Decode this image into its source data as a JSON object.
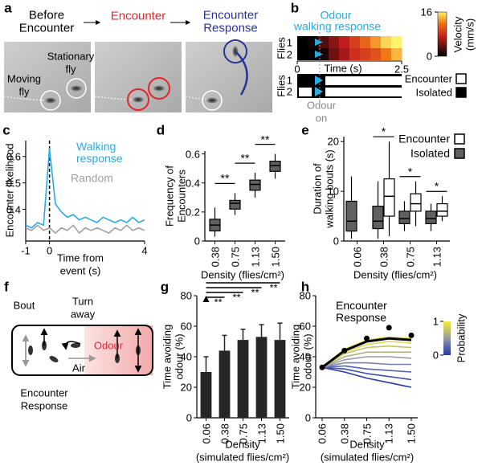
{
  "figure": {
    "panel_labels": [
      "a",
      "b",
      "c",
      "d",
      "e",
      "f",
      "g",
      "h"
    ],
    "panel_a": {
      "steps": [
        [
          "Before",
          "Encounter"
        ],
        [
          "Encounter"
        ],
        [
          "Encounter",
          "Response"
        ]
      ],
      "step_colors": [
        "#000000",
        "#e3262e",
        "#283593"
      ],
      "annotations": [
        [
          "Stationary",
          "fly"
        ],
        [
          "Moving",
          "fly"
        ]
      ]
    },
    "panel_f": {
      "bout": "Bout",
      "turn": [
        "Turn",
        "away"
      ],
      "air": "Air",
      "odour": "Odour",
      "response": [
        "Encounter",
        "Response"
      ]
    }
  },
  "chart_data": [
    {
      "type": "heatmap",
      "title": [
        "Odour",
        "walking response"
      ],
      "title_color": "#29abe2",
      "ylabel": "Flies",
      "rows": [
        "1",
        "2"
      ],
      "xlabel": "Time (s)",
      "xlim": [
        0,
        2.5
      ],
      "xticks": [
        0,
        2.5
      ],
      "values": [
        [
          0,
          0.5,
          3,
          5,
          7,
          9,
          11,
          13,
          15,
          16
        ],
        [
          0,
          0,
          1,
          4,
          6,
          8,
          9,
          10,
          12,
          14
        ]
      ],
      "colorbar": {
        "label": [
          "Velocity",
          "(mm/s)"
        ],
        "lim": [
          0,
          16
        ],
        "ticks": [
          0,
          16
        ]
      },
      "raster": {
        "ylabel": "Flies",
        "rows": [
          "1",
          "2"
        ],
        "legend": [
          {
            "name": "Encounter",
            "color": "#ffffff"
          },
          {
            "name": "Isolated",
            "color": "#000000"
          }
        ],
        "marker": [
          "Odour",
          "on"
        ]
      }
    },
    {
      "type": "line",
      "ylabel": "Encounter likelihood",
      "xlabel": [
        "Time from",
        "event (s)"
      ],
      "xlim": [
        -1,
        4
      ],
      "xticks": [
        -1,
        0,
        4
      ],
      "ylim": [
        0.28,
        0.66
      ],
      "yticks": [
        0.4,
        0.5,
        0.6
      ],
      "x": [
        -1,
        -0.75,
        -0.5,
        -0.25,
        0,
        0.25,
        0.5,
        0.75,
        1,
        1.25,
        1.5,
        1.75,
        2,
        2.25,
        2.5,
        2.75,
        3,
        3.25,
        3.5,
        3.75,
        4
      ],
      "series": [
        {
          "name": "Walking response",
          "color": "#29abe2",
          "values": [
            0.34,
            0.33,
            0.35,
            0.34,
            0.63,
            0.42,
            0.39,
            0.37,
            0.38,
            0.36,
            0.37,
            0.36,
            0.35,
            0.37,
            0.36,
            0.35,
            0.36,
            0.35,
            0.37,
            0.35,
            0.36
          ]
        },
        {
          "name": "Random",
          "color": "#a0a0a0",
          "values": [
            0.33,
            0.32,
            0.34,
            0.32,
            0.33,
            0.31,
            0.33,
            0.32,
            0.34,
            0.31,
            0.33,
            0.32,
            0.33,
            0.32,
            0.31,
            0.33,
            0.32,
            0.34,
            0.32,
            0.33,
            0.32
          ]
        }
      ]
    },
    {
      "type": "box",
      "ylabel": [
        "Frequency of",
        "Encounters"
      ],
      "xlabel": "Density (flies/cm²)",
      "categories": [
        "0.38",
        "0.75",
        "1.13",
        "1.50"
      ],
      "ylim": [
        0,
        0.62
      ],
      "yticks": [
        0,
        0.2,
        0.4,
        0.6
      ],
      "series": [
        {
          "color": "#606060",
          "boxes": [
            {
              "min": 0.03,
              "q1": 0.07,
              "median": 0.11,
              "q3": 0.15,
              "max": 0.23
            },
            {
              "min": 0.18,
              "q1": 0.22,
              "median": 0.26,
              "q3": 0.28,
              "max": 0.33
            },
            {
              "min": 0.3,
              "q1": 0.35,
              "median": 0.39,
              "q3": 0.42,
              "max": 0.47
            },
            {
              "min": 0.43,
              "q1": 0.48,
              "median": 0.52,
              "q3": 0.55,
              "max": 0.6
            }
          ]
        }
      ],
      "significance": [
        "**",
        "**",
        "**"
      ],
      "significance_style": "adjacent"
    },
    {
      "type": "box",
      "ylabel": [
        "Duration of",
        "walking bouts (s)"
      ],
      "xlabel": "Density (flies/cm²)",
      "categories": [
        "0.06",
        "0.38",
        "0.75",
        "1.13"
      ],
      "ylim": [
        0,
        21
      ],
      "yticks": [
        0,
        10,
        20
      ],
      "series": [
        {
          "name": "Encounter",
          "color": "#ffffff",
          "boxes": [
            null,
            {
              "min": 1,
              "q1": 5,
              "median": 9,
              "q3": 12.5,
              "max": 20
            },
            {
              "min": 3,
              "q1": 6,
              "median": 7.5,
              "q3": 9.5,
              "max": 12
            },
            {
              "min": 4,
              "q1": 5,
              "median": 6,
              "q3": 7.5,
              "max": 9
            }
          ]
        },
        {
          "name": "Isolated",
          "color": "#606060",
          "boxes": [
            {
              "min": 0.5,
              "q1": 2,
              "median": 4,
              "q3": 8,
              "max": 13
            },
            {
              "min": 0.5,
              "q1": 2.5,
              "median": 4,
              "q3": 7,
              "max": 12
            },
            {
              "min": 2,
              "q1": 3.5,
              "median": 4.5,
              "q3": 6,
              "max": 8
            },
            {
              "min": 2,
              "q1": 3.5,
              "median": 4.5,
              "q3": 6,
              "max": 7.5
            }
          ]
        }
      ],
      "significance": [
        null,
        "*",
        "*",
        "*"
      ],
      "significance_style": "category"
    },
    {
      "type": "bar",
      "ylabel": [
        "Time avoiding",
        "odour (%)"
      ],
      "xlabel": [
        "Density",
        "(simulated flies/cm²)"
      ],
      "categories": [
        "0.06",
        "0.38",
        "0.75",
        "1.13",
        "1.50"
      ],
      "values": [
        30,
        44,
        51,
        53,
        51
      ],
      "errors": [
        10,
        10,
        7,
        8,
        11
      ],
      "color": "#262626",
      "ylim": [
        0,
        80
      ],
      "yticks": [
        0,
        20,
        40,
        60,
        80
      ],
      "significance": [
        "**",
        "**",
        "**",
        "**"
      ],
      "significance_style": "from_first"
    },
    {
      "type": "line",
      "ylabel": [
        "Time avoiding",
        "odour (%)"
      ],
      "xlabel": [
        "Density",
        "(simulated flies/cm²)"
      ],
      "categories": [
        "0.06",
        "0.38",
        "0.75",
        "1.13",
        "1.50"
      ],
      "ylim": [
        0,
        80
      ],
      "yticks": [
        0,
        20,
        40,
        60,
        80
      ],
      "series": [
        {
          "color": "#2b3a9c",
          "values": [
            33,
            30,
            26,
            23,
            20
          ]
        },
        {
          "color": "#3f50a6",
          "values": [
            33,
            32,
            29,
            27,
            25
          ]
        },
        {
          "color": "#5866ad",
          "values": [
            33,
            34,
            32,
            31,
            30
          ]
        },
        {
          "color": "#7780a8",
          "values": [
            33,
            36,
            36,
            35,
            35
          ]
        },
        {
          "color": "#9a9c9a",
          "values": [
            33,
            38,
            40,
            40,
            39
          ]
        },
        {
          "color": "#aeae80",
          "values": [
            33,
            40,
            43,
            43,
            43
          ]
        },
        {
          "color": "#c5c466",
          "values": [
            33,
            42,
            46,
            47,
            46
          ]
        },
        {
          "color": "#dcd950",
          "values": [
            33,
            43,
            48,
            50,
            49
          ]
        },
        {
          "color": "#f3ec3a",
          "values": [
            33,
            45,
            51,
            53,
            52
          ]
        },
        {
          "color": "#000000",
          "values": [
            33,
            44,
            50,
            52,
            51
          ],
          "style": "bold"
        },
        {
          "name": "Encounter Response",
          "color": "#000000",
          "values": [
            33,
            44,
            52,
            59,
            54
          ],
          "markers": true
        }
      ],
      "colorbar": {
        "label": "Probability",
        "lim": [
          0,
          1
        ],
        "ticks": [
          0,
          1
        ]
      }
    }
  ]
}
